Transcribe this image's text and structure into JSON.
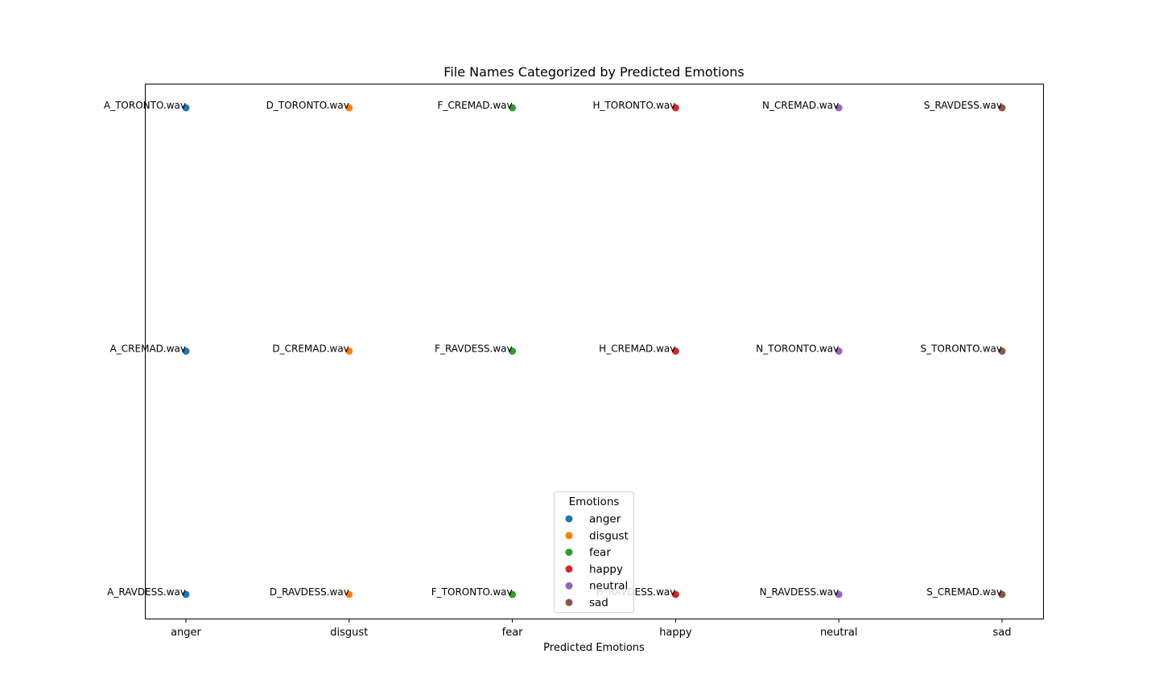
{
  "chart_data": {
    "type": "scatter",
    "title": "File Names Categorized by Predicted Emotions",
    "xlabel": "Predicted Emotions",
    "ylabel": "",
    "categories": [
      "anger",
      "disgust",
      "fear",
      "happy",
      "neutral",
      "sad"
    ],
    "grid": false,
    "series": [
      {
        "name": "anger",
        "color": "#1f77b4",
        "points": [
          {
            "x": "anger",
            "y": 0,
            "label": "A_TORONTO.wav"
          },
          {
            "x": "anger",
            "y": 1,
            "label": "A_CREMAD.wav"
          },
          {
            "x": "anger",
            "y": 2,
            "label": "A_RAVDESS.wav"
          }
        ]
      },
      {
        "name": "disgust",
        "color": "#ff7f0e",
        "points": [
          {
            "x": "disgust",
            "y": 0,
            "label": "D_TORONTO.wav"
          },
          {
            "x": "disgust",
            "y": 1,
            "label": "D_CREMAD.wav"
          },
          {
            "x": "disgust",
            "y": 2,
            "label": "D_RAVDESS.wav"
          }
        ]
      },
      {
        "name": "fear",
        "color": "#2ca02c",
        "points": [
          {
            "x": "fear",
            "y": 0,
            "label": "F_CREMAD.wav"
          },
          {
            "x": "fear",
            "y": 1,
            "label": "F_RAVDESS.wav"
          },
          {
            "x": "fear",
            "y": 2,
            "label": "F_TORONTO.wav"
          }
        ]
      },
      {
        "name": "happy",
        "color": "#d62728",
        "points": [
          {
            "x": "happy",
            "y": 0,
            "label": "H_TORONTO.wav"
          },
          {
            "x": "happy",
            "y": 1,
            "label": "H_CREMAD.wav"
          },
          {
            "x": "happy",
            "y": 2,
            "label": "H_RAVDESS.wav"
          }
        ]
      },
      {
        "name": "neutral",
        "color": "#9467bd",
        "points": [
          {
            "x": "neutral",
            "y": 0,
            "label": "N_CREMAD.wav"
          },
          {
            "x": "neutral",
            "y": 1,
            "label": "N_TORONTO.wav"
          },
          {
            "x": "neutral",
            "y": 2,
            "label": "N_RAVDESS.wav"
          }
        ]
      },
      {
        "name": "sad",
        "color": "#8c564b",
        "points": [
          {
            "x": "sad",
            "y": 0,
            "label": "S_RAVDESS.wav"
          },
          {
            "x": "sad",
            "y": 1,
            "label": "S_TORONTO.wav"
          },
          {
            "x": "sad",
            "y": 2,
            "label": "S_CREMAD.wav"
          }
        ]
      }
    ],
    "legend": {
      "title": "Emotions",
      "position": "bottom-center"
    }
  }
}
